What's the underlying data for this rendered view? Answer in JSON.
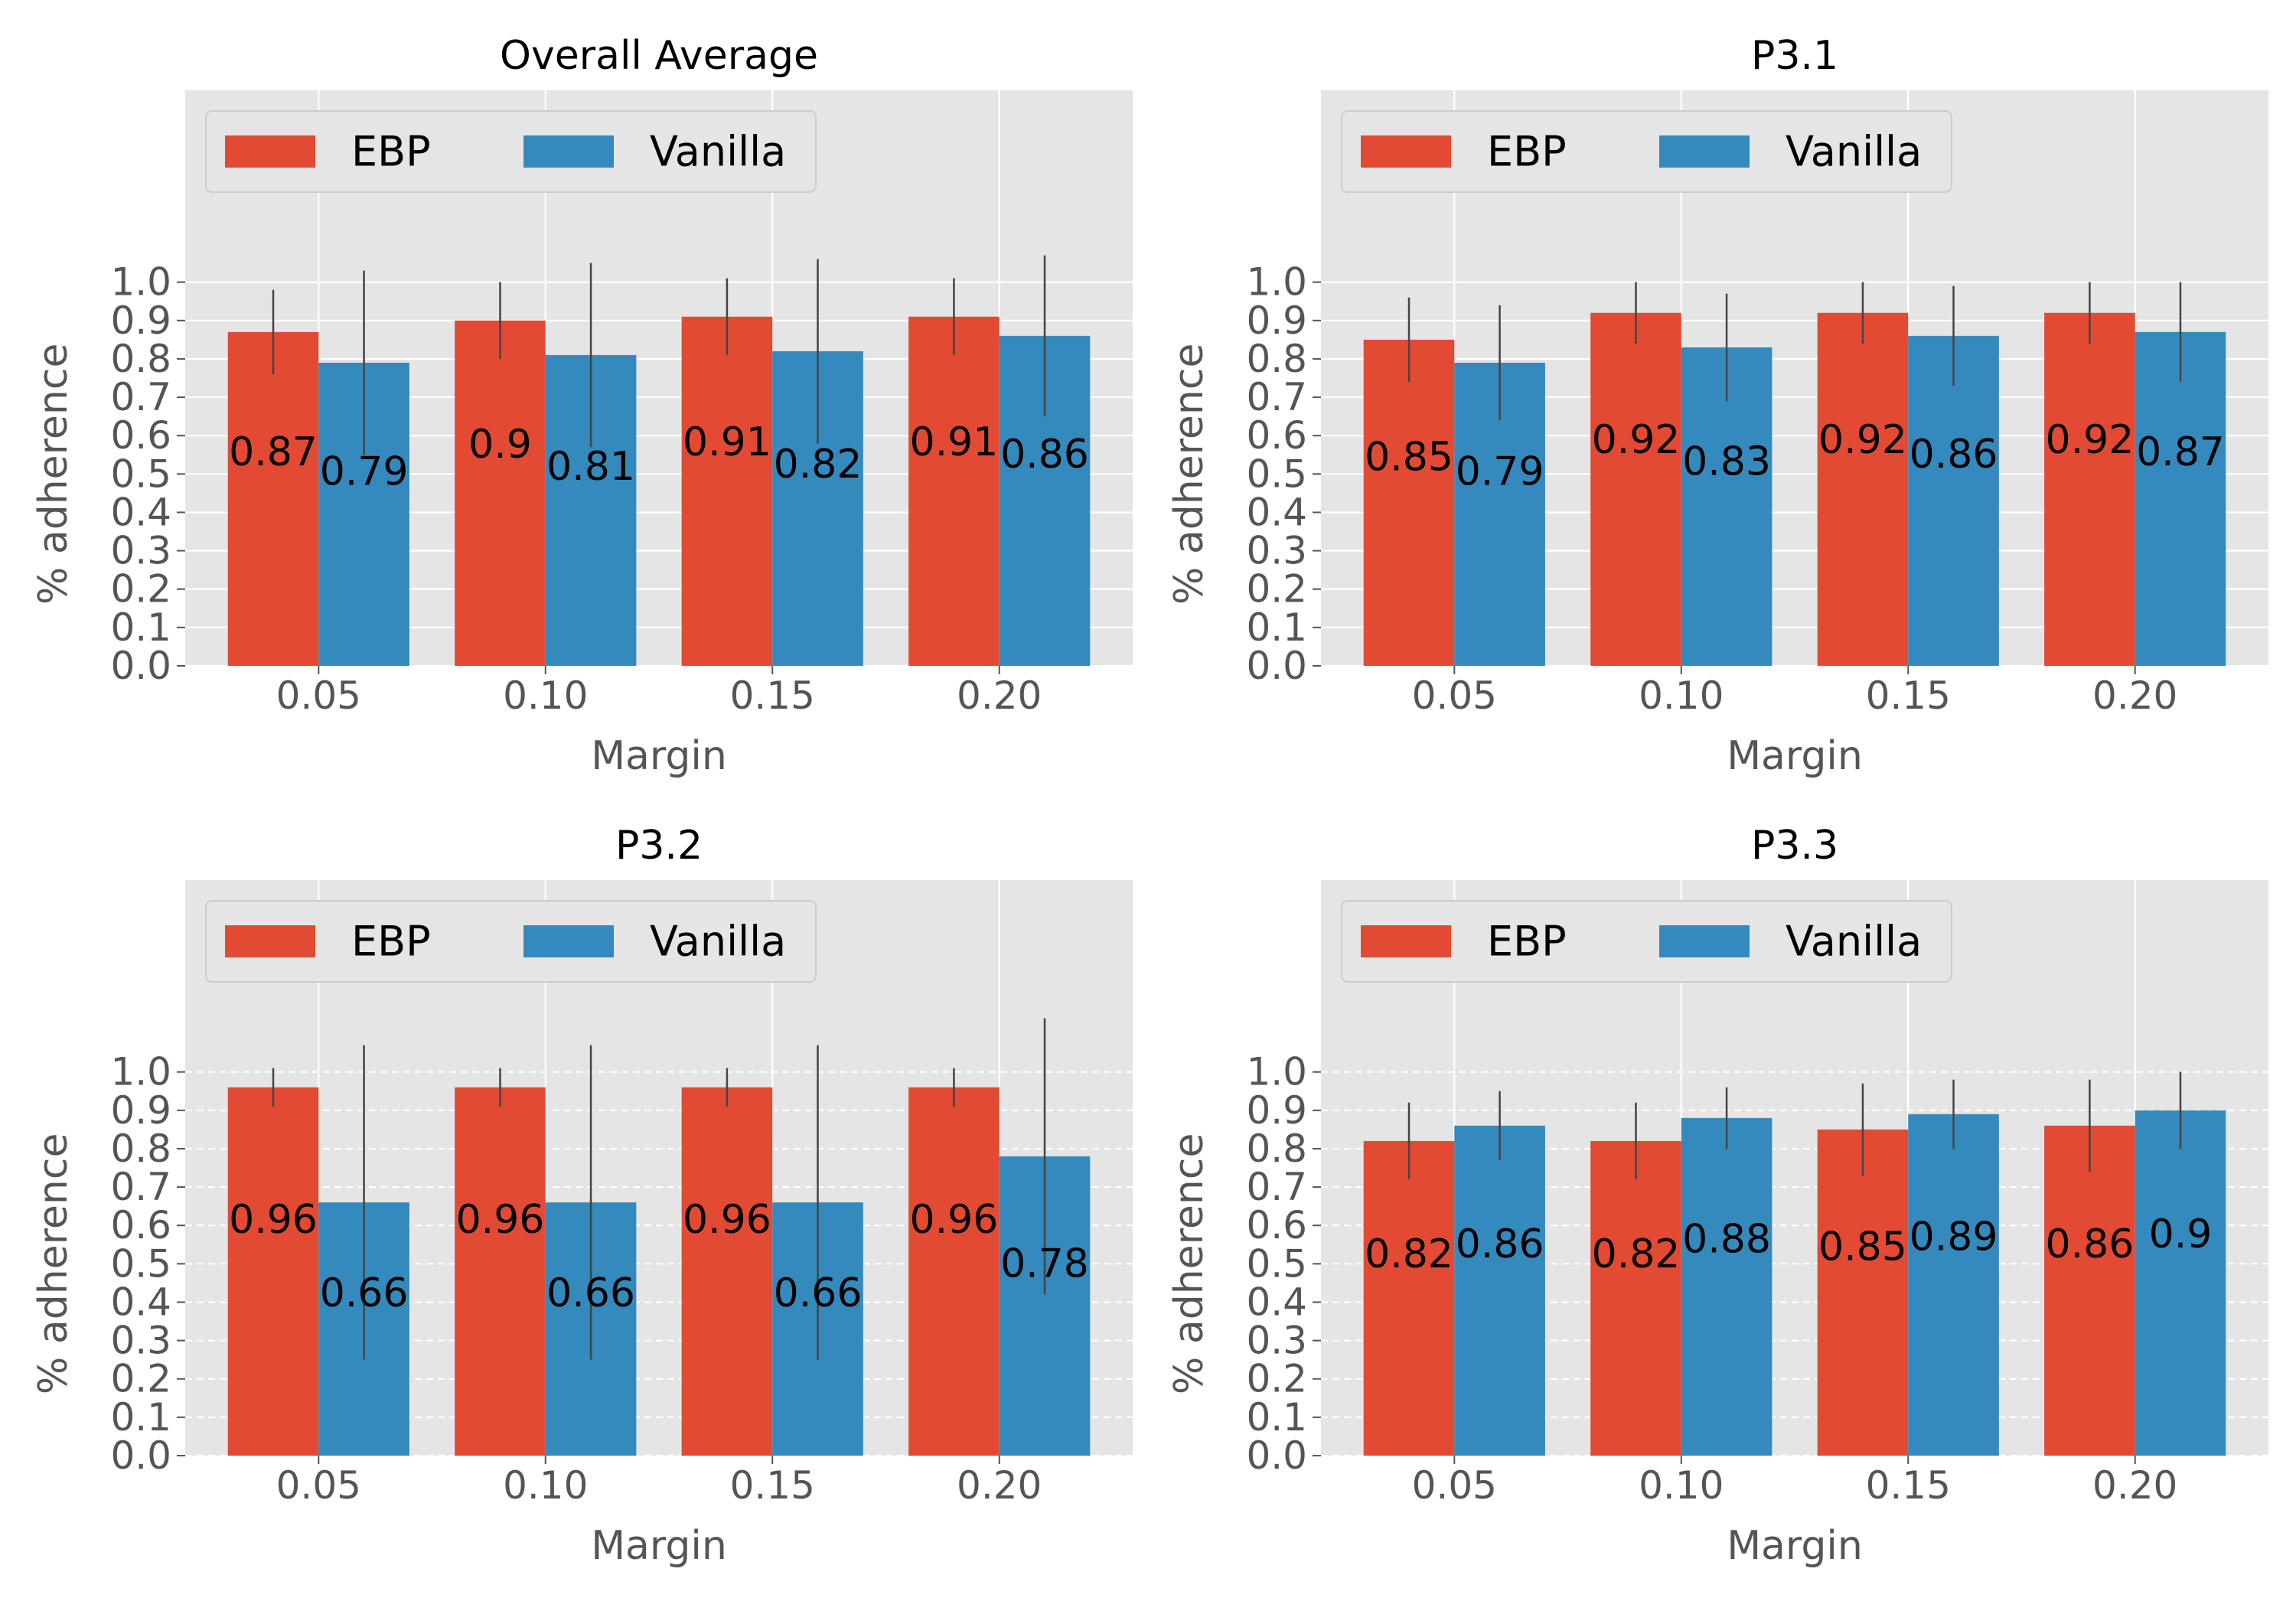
{
  "colors": {
    "ebp": "#E24A33",
    "vanilla": "#348ABD",
    "panel_bg": "#E5E5E5",
    "grid": "#FFFFFF",
    "errorbar": "#444444",
    "tick_text": "#555555"
  },
  "chart_data": [
    {
      "type": "bar",
      "title": "Overall Average",
      "xlabel": "Margin",
      "ylabel": "% adherence",
      "categories": [
        "0.05",
        "0.10",
        "0.15",
        "0.20"
      ],
      "yticks": [
        "0.0",
        "0.1",
        "0.2",
        "0.3",
        "0.4",
        "0.5",
        "0.6",
        "0.7",
        "0.8",
        "0.9",
        "1.0"
      ],
      "ylim": [
        0,
        1.5
      ],
      "grid": true,
      "legend": "top-left",
      "series": [
        {
          "name": "EBP",
          "values": [
            0.87,
            0.9,
            0.91,
            0.91
          ],
          "labels": [
            "0.87",
            "0.9",
            "0.91",
            "0.91"
          ],
          "err": [
            0.11,
            0.1,
            0.1,
            0.1
          ]
        },
        {
          "name": "Vanilla",
          "values": [
            0.79,
            0.81,
            0.82,
            0.86
          ],
          "labels": [
            "0.79",
            "0.81",
            "0.82",
            "0.86"
          ],
          "err": [
            0.24,
            0.24,
            0.24,
            0.21
          ]
        }
      ]
    },
    {
      "type": "bar",
      "title": "P3.1",
      "xlabel": "Margin",
      "ylabel": "% adherence",
      "categories": [
        "0.05",
        "0.10",
        "0.15",
        "0.20"
      ],
      "yticks": [
        "0.0",
        "0.1",
        "0.2",
        "0.3",
        "0.4",
        "0.5",
        "0.6",
        "0.7",
        "0.8",
        "0.9",
        "1.0"
      ],
      "ylim": [
        0,
        1.5
      ],
      "grid": true,
      "legend": "top-left",
      "series": [
        {
          "name": "EBP",
          "values": [
            0.85,
            0.92,
            0.92,
            0.92
          ],
          "labels": [
            "0.85",
            "0.92",
            "0.92",
            "0.92"
          ],
          "err": [
            0.11,
            0.08,
            0.08,
            0.08
          ]
        },
        {
          "name": "Vanilla",
          "values": [
            0.79,
            0.83,
            0.86,
            0.87
          ],
          "labels": [
            "0.79",
            "0.83",
            "0.86",
            "0.87"
          ],
          "err": [
            0.15,
            0.14,
            0.13,
            0.13
          ]
        }
      ]
    },
    {
      "type": "bar",
      "title": "P3.2",
      "xlabel": "Margin",
      "ylabel": "% adherence",
      "categories": [
        "0.05",
        "0.10",
        "0.15",
        "0.20"
      ],
      "yticks": [
        "0.0",
        "0.1",
        "0.2",
        "0.3",
        "0.4",
        "0.5",
        "0.6",
        "0.7",
        "0.8",
        "0.9",
        "1.0"
      ],
      "ylim": [
        0,
        1.5
      ],
      "grid": true,
      "legend": "top-left",
      "series": [
        {
          "name": "EBP",
          "values": [
            0.96,
            0.96,
            0.96,
            0.96
          ],
          "labels": [
            "0.96",
            "0.96",
            "0.96",
            "0.96"
          ],
          "err": [
            0.05,
            0.05,
            0.05,
            0.05
          ]
        },
        {
          "name": "Vanilla",
          "values": [
            0.66,
            0.66,
            0.66,
            0.78
          ],
          "labels": [
            "0.66",
            "0.66",
            "0.66",
            "0.78"
          ],
          "err": [
            0.41,
            0.41,
            0.41,
            0.36
          ]
        }
      ]
    },
    {
      "type": "bar",
      "title": "P3.3",
      "xlabel": "Margin",
      "ylabel": "% adherence",
      "categories": [
        "0.05",
        "0.10",
        "0.15",
        "0.20"
      ],
      "yticks": [
        "0.0",
        "0.1",
        "0.2",
        "0.3",
        "0.4",
        "0.5",
        "0.6",
        "0.7",
        "0.8",
        "0.9",
        "1.0"
      ],
      "ylim": [
        0,
        1.5
      ],
      "grid": true,
      "legend": "top-left",
      "series": [
        {
          "name": "EBP",
          "values": [
            0.82,
            0.82,
            0.85,
            0.86
          ],
          "labels": [
            "0.82",
            "0.82",
            "0.85",
            "0.86"
          ],
          "err": [
            0.1,
            0.1,
            0.12,
            0.12
          ]
        },
        {
          "name": "Vanilla",
          "values": [
            0.86,
            0.88,
            0.89,
            0.9
          ],
          "labels": [
            "0.86",
            "0.88",
            "0.89",
            "0.9"
          ],
          "err": [
            0.09,
            0.08,
            0.09,
            0.1
          ]
        }
      ]
    }
  ]
}
